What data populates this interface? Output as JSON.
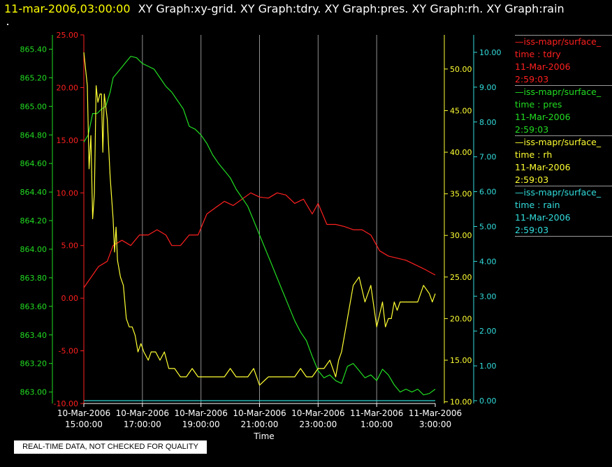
{
  "header": {
    "timestamp": "11-mar-2006,03:00:00",
    "graphs": "XY Graph:xy-grid.  XY Graph:tdry.  XY Graph:pres.  XY Graph:rh.  XY Graph:rain"
  },
  "legend": [
    {
      "name": "—iss-mapr/surface_",
      "var": "time : tdry",
      "date": "11-Mar-2006",
      "time": "2:59:03",
      "color": "#ff2020"
    },
    {
      "name": "—iss-mapr/surface_",
      "var": "time : pres",
      "date": "11-Mar-2006",
      "time": "2:59:03",
      "color": "#22dd22"
    },
    {
      "name": "—iss-mapr/surface_",
      "var": "time : rh",
      "date": "11-Mar-2006",
      "time": "2:59:03",
      "color": "#ffff33"
    },
    {
      "name": "—iss-mapr/surface_",
      "var": "time : rain",
      "date": "11-Mar-2006",
      "time": "2:59:03",
      "color": "#33dddd"
    }
  ],
  "notice": "REAL-TIME DATA, NOT CHECKED FOR QUALITY",
  "chart_data": {
    "type": "line",
    "xlabel": "Time",
    "x_ticks": [
      {
        "d": "10-Mar-2006",
        "t": "15:00:00"
      },
      {
        "d": "10-Mar-2006",
        "t": "17:00:00"
      },
      {
        "d": "10-Mar-2006",
        "t": "19:00:00"
      },
      {
        "d": "10-Mar-2006",
        "t": "21:00:00"
      },
      {
        "d": "10-Mar-2006",
        "t": "23:00:00"
      },
      {
        "d": "11-Mar-2006",
        "t": "1:00:00"
      },
      {
        "d": "11-Mar-2006",
        "t": "3:00:00"
      }
    ],
    "xlim_hours": [
      0,
      12
    ],
    "grid": "vertical",
    "axes": {
      "tdry": {
        "color": "#ff2020",
        "ticks": [
          "25.00",
          "20.00",
          "15.00",
          "10.00",
          "5.00",
          "0.00",
          "-5.00",
          "-10.00"
        ],
        "ylim": [
          -10,
          25
        ]
      },
      "pres": {
        "color": "#22dd22",
        "ticks": [
          "865.40",
          "865.20",
          "865.00",
          "864.80",
          "864.60",
          "864.40",
          "864.20",
          "864.00",
          "863.80",
          "863.60",
          "863.40",
          "863.20",
          "863.00"
        ],
        "ylim": [
          862.92,
          865.5
        ]
      },
      "rh": {
        "color": "#ffff33",
        "ticks": [
          "50.00",
          "45.00",
          "40.00",
          "35.00",
          "30.00",
          "25.00",
          "20.00",
          "15.00",
          "10.00"
        ],
        "ylim": [
          9.8,
          54.1
        ]
      },
      "rain": {
        "color": "#33dddd",
        "ticks": [
          "10.00",
          "9.00",
          "8.00",
          "7.00",
          "6.00",
          "5.00",
          "4.00",
          "3.00",
          "2.00",
          "1.00",
          "0.00"
        ],
        "ylim": [
          -0.08,
          10.5
        ]
      }
    },
    "series": [
      {
        "axis": "tdry",
        "color": "#ff2020",
        "x": [
          0,
          0.5,
          0.8,
          1,
          1.3,
          1.6,
          1.9,
          2.2,
          2.5,
          2.8,
          3,
          3.3,
          3.6,
          3.9,
          4.2,
          4.5,
          4.8,
          5.1,
          5.4,
          5.7,
          6,
          6.3,
          6.6,
          6.9,
          7.2,
          7.5,
          7.8,
          8,
          8.3,
          8.6,
          8.9,
          9.2,
          9.5,
          9.8,
          10.1,
          10.4,
          10.7,
          11,
          11.3,
          11.6,
          12
        ],
        "y": [
          1,
          3,
          3.5,
          5,
          5.5,
          5,
          6,
          6,
          6.5,
          6,
          5,
          5,
          6,
          6,
          8,
          8.6,
          9.2,
          8.8,
          9.4,
          10,
          9.6,
          9.5,
          10,
          9.8,
          9,
          9.4,
          8,
          9,
          7,
          7,
          6.8,
          6.5,
          6.5,
          6,
          4.5,
          4,
          3.8,
          3.6,
          3.2,
          2.8,
          2.2
        ]
      },
      {
        "axis": "pres",
        "color": "#22dd22",
        "x": [
          0,
          0.15,
          0.3,
          0.45,
          0.6,
          0.75,
          0.9,
          1,
          1.2,
          1.4,
          1.6,
          1.8,
          2,
          2.2,
          2.4,
          2.6,
          2.8,
          3,
          3.2,
          3.4,
          3.6,
          3.8,
          4,
          4.2,
          4.4,
          4.6,
          4.8,
          5,
          5.2,
          5.4,
          5.6,
          5.8,
          6,
          6.2,
          6.4,
          6.6,
          6.8,
          7,
          7.2,
          7.4,
          7.6,
          7.8,
          8,
          8.2,
          8.4,
          8.6,
          8.8,
          9,
          9.2,
          9.4,
          9.6,
          9.8,
          10,
          10.2,
          10.4,
          10.6,
          10.8,
          11,
          11.2,
          11.4,
          11.6,
          11.8,
          12
        ],
        "y": [
          864.75,
          864.8,
          864.95,
          864.95,
          864.98,
          865.0,
          865.1,
          865.2,
          865.25,
          865.3,
          865.35,
          865.34,
          865.3,
          865.28,
          865.26,
          865.2,
          865.14,
          865.1,
          865.04,
          864.98,
          864.86,
          864.84,
          864.8,
          864.74,
          864.66,
          864.6,
          864.55,
          864.5,
          864.42,
          864.36,
          864.3,
          864.2,
          864.1,
          864.0,
          863.9,
          863.8,
          863.7,
          863.6,
          863.5,
          863.42,
          863.36,
          863.25,
          863.15,
          863.1,
          863.12,
          863.08,
          863.06,
          863.18,
          863.2,
          863.15,
          863.1,
          863.12,
          863.08,
          863.16,
          863.12,
          863.05,
          863.0,
          863.02,
          863.0,
          863.02,
          862.98,
          862.99,
          863.02
        ]
      },
      {
        "axis": "rh",
        "color": "#ffff33",
        "x": [
          0,
          0.06,
          0.12,
          0.18,
          0.24,
          0.3,
          0.36,
          0.42,
          0.48,
          0.55,
          0.6,
          0.65,
          0.7,
          0.8,
          0.9,
          1,
          1.05,
          1.1,
          1.15,
          1.25,
          1.35,
          1.45,
          1.55,
          1.65,
          1.75,
          1.85,
          1.95,
          2.05,
          2.2,
          2.3,
          2.45,
          2.6,
          2.75,
          2.9,
          3.1,
          3.3,
          3.5,
          3.7,
          3.9,
          4.2,
          4.5,
          4.8,
          5,
          5.2,
          5.4,
          5.6,
          5.8,
          6,
          6.3,
          6.6,
          6.9,
          7.2,
          7.4,
          7.6,
          7.8,
          8,
          8.2,
          8.4,
          8.6,
          8.7,
          8.8,
          9,
          9.2,
          9.4,
          9.6,
          9.8,
          10,
          10.2,
          10.3,
          10.4,
          10.5,
          10.6,
          10.7,
          10.8,
          11,
          11.2,
          11.4,
          11.6,
          11.8,
          11.9,
          12
        ],
        "y": [
          52,
          50,
          48,
          38,
          42,
          32,
          35,
          48,
          46,
          47,
          47,
          40,
          47,
          44,
          37,
          32,
          28,
          31,
          27,
          25,
          24,
          20,
          19,
          19,
          18,
          16,
          17,
          16,
          15,
          16,
          16,
          15,
          16,
          14,
          14,
          13,
          13,
          14,
          13,
          13,
          13,
          13,
          14,
          13,
          13,
          13,
          14,
          12,
          13,
          13,
          13,
          13,
          14,
          13,
          13,
          14,
          14,
          15,
          13,
          15,
          16,
          20,
          24,
          25,
          22,
          24,
          19,
          22,
          19,
          20,
          20,
          22,
          21,
          22,
          22,
          22,
          22,
          24,
          23,
          22,
          23
        ]
      },
      {
        "axis": "rain",
        "color": "#33dddd",
        "x": [
          0,
          12
        ],
        "y": [
          0,
          0
        ]
      }
    ]
  }
}
